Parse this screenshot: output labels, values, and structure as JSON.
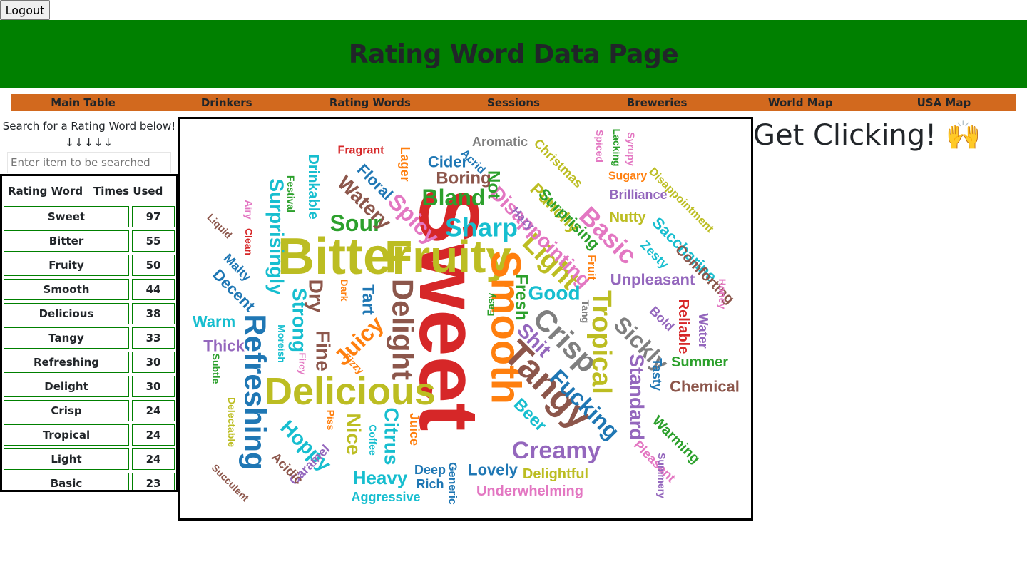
{
  "logout_label": "Logout",
  "page_title": "Rating Word Data Page",
  "nav": [
    "Main Table",
    "Drinkers",
    "Rating Words",
    "Sessions",
    "Breweries",
    "World Map",
    "USA Map"
  ],
  "search": {
    "title": "Search for a Rating Word below!",
    "arrows": "↓↓↓↓↓",
    "placeholder": "Enter item to be searched"
  },
  "table": {
    "headers": [
      "Rating Word",
      "Times Used"
    ],
    "rows": [
      [
        "Sweet",
        "97"
      ],
      [
        "Bitter",
        "55"
      ],
      [
        "Fruity",
        "50"
      ],
      [
        "Smooth",
        "44"
      ],
      [
        "Delicious",
        "38"
      ],
      [
        "Tangy",
        "33"
      ],
      [
        "Refreshing",
        "30"
      ],
      [
        "Delight",
        "30"
      ],
      [
        "Crisp",
        "24"
      ],
      [
        "Tropical",
        "24"
      ],
      [
        "Light",
        "24"
      ],
      [
        "Basic",
        "23"
      ]
    ]
  },
  "cloud_words": [
    {
      "t": "Sweet",
      "c": "#d62728",
      "s": 118,
      "r": 90
    },
    {
      "t": "Bitter",
      "c": "#bcbd22",
      "s": 72,
      "r": 0
    },
    {
      "t": "Fruity",
      "c": "#bcbd22",
      "s": 64,
      "r": 0
    },
    {
      "t": "Smooth",
      "c": "#ff7f0e",
      "s": 58,
      "r": 90
    },
    {
      "t": "Delicious",
      "c": "#bcbd22",
      "s": 54,
      "r": 0
    },
    {
      "t": "Tangy",
      "c": "#8c564b",
      "s": 52,
      "r": 45
    },
    {
      "t": "Refreshing",
      "c": "#1f77b4",
      "s": 42,
      "r": 90
    },
    {
      "t": "Delight",
      "c": "#8c564b",
      "s": 42,
      "r": 90
    },
    {
      "t": "Crisp",
      "c": "#7f7f7f",
      "s": 42,
      "r": 45
    },
    {
      "t": "Tropical",
      "c": "#bcbd22",
      "s": 38,
      "r": 90
    },
    {
      "t": "Light",
      "c": "#bcbd22",
      "s": 38,
      "r": 45
    },
    {
      "t": "Basic",
      "c": "#e377c2",
      "s": 36,
      "r": 45
    },
    {
      "t": "Sharp",
      "c": "#17becf",
      "s": 36,
      "r": 0
    },
    {
      "t": "Creamy",
      "c": "#9467bd",
      "s": 34,
      "r": 0
    },
    {
      "t": "Fucking",
      "c": "#1f77b4",
      "s": 32,
      "r": 45
    },
    {
      "t": "Bland",
      "c": "#2ca02c",
      "s": 32,
      "r": 0
    },
    {
      "t": "Juicy",
      "c": "#ff7f0e",
      "s": 32,
      "r": -45
    },
    {
      "t": "Sickly",
      "c": "#7f7f7f",
      "s": 32,
      "r": 45
    },
    {
      "t": "Sour",
      "c": "#2ca02c",
      "s": 32,
      "r": 0
    },
    {
      "t": "Spicy",
      "c": "#e377c2",
      "s": 32,
      "r": 45
    },
    {
      "t": "Disappointing",
      "c": "#e377c2",
      "s": 28,
      "r": 45
    },
    {
      "t": "Surprisingly",
      "c": "#17becf",
      "s": 28,
      "r": 90
    },
    {
      "t": "Strong",
      "c": "#17becf",
      "s": 28,
      "r": 90
    },
    {
      "t": "Fine",
      "c": "#8c564b",
      "s": 28,
      "r": 90
    },
    {
      "t": "Nice",
      "c": "#bcbd22",
      "s": 28,
      "r": 90
    },
    {
      "t": "Hoppy",
      "c": "#17becf",
      "s": 28,
      "r": 45
    },
    {
      "t": "Standard",
      "c": "#9467bd",
      "s": 28,
      "r": 90
    },
    {
      "t": "Shit",
      "c": "#9467bd",
      "s": 28,
      "r": 45
    },
    {
      "t": "Good",
      "c": "#17becf",
      "s": 28,
      "r": 0
    },
    {
      "t": "Citrus",
      "c": "#17becf",
      "s": 28,
      "r": 90
    },
    {
      "t": "Watery",
      "c": "#8c564b",
      "s": 28,
      "r": 45
    },
    {
      "t": "Dry",
      "c": "#8c564b",
      "s": 28,
      "r": 90
    },
    {
      "t": "Heavy",
      "c": "#17becf",
      "s": 26,
      "r": 0
    },
    {
      "t": "Fresh",
      "c": "#2ca02c",
      "s": 24,
      "r": 90
    },
    {
      "t": "Punchy",
      "c": "#bcbd22",
      "s": 24,
      "r": 45
    },
    {
      "t": "Boring",
      "c": "#8c564b",
      "s": 24,
      "r": 0
    },
    {
      "t": "Tart",
      "c": "#1f77b4",
      "s": 24,
      "r": 90
    },
    {
      "t": "Beer",
      "c": "#17becf",
      "s": 24,
      "r": 45
    },
    {
      "t": "Saccharine",
      "c": "#17becf",
      "s": 22,
      "r": 45
    },
    {
      "t": "Unpleasant",
      "c": "#9467bd",
      "s": 22,
      "r": 0
    },
    {
      "t": "Lovely",
      "c": "#1f77b4",
      "s": 22,
      "r": 0
    },
    {
      "t": "Chemical",
      "c": "#8c564b",
      "s": 22,
      "r": 0
    },
    {
      "t": "Surprising",
      "c": "#2ca02c",
      "s": 22,
      "r": 45
    },
    {
      "t": "Cider",
      "c": "#1f77b4",
      "s": 22,
      "r": 0
    },
    {
      "t": "Decent",
      "c": "#1f77b4",
      "s": 22,
      "r": 45
    },
    {
      "t": "Warm",
      "c": "#17becf",
      "s": 22,
      "r": 0
    },
    {
      "t": "Thick",
      "c": "#9467bd",
      "s": 22,
      "r": 0
    },
    {
      "t": "Underwhelming",
      "c": "#e377c2",
      "s": 20,
      "r": 0
    },
    {
      "t": "Delightful",
      "c": "#bcbd22",
      "s": 20,
      "r": 0
    },
    {
      "t": "Warming",
      "c": "#2ca02c",
      "s": 20,
      "r": 45
    },
    {
      "t": "Summer",
      "c": "#2ca02c",
      "s": 20,
      "r": 0
    },
    {
      "t": "Nutty",
      "c": "#bcbd22",
      "s": 20,
      "r": 0
    },
    {
      "t": "Reliable",
      "c": "#d62728",
      "s": 20,
      "r": 90
    },
    {
      "t": "Comforting",
      "c": "#8c564b",
      "s": 20,
      "r": 45
    },
    {
      "t": "Floral",
      "c": "#1f77b4",
      "s": 22,
      "r": 45
    },
    {
      "t": "Drinkable",
      "c": "#17becf",
      "s": 20,
      "r": 90
    },
    {
      "t": "Christmas",
      "c": "#bcbd22",
      "s": 18,
      "r": 45
    },
    {
      "t": "Brilliance",
      "c": "#9467bd",
      "s": 18,
      "r": 0
    },
    {
      "t": "Aggressive",
      "c": "#17becf",
      "s": 18,
      "r": 0
    },
    {
      "t": "Aromatic",
      "c": "#7f7f7f",
      "s": 18,
      "r": 0
    },
    {
      "t": "Caramel",
      "c": "#9467bd",
      "s": 18,
      "r": -45
    },
    {
      "t": "Pleasant",
      "c": "#e377c2",
      "s": 18,
      "r": 45
    },
    {
      "t": "Acidic",
      "c": "#8c564b",
      "s": 18,
      "r": 45
    },
    {
      "t": "Zesty",
      "c": "#17becf",
      "s": 18,
      "r": 45
    },
    {
      "t": "Bold",
      "c": "#9467bd",
      "s": 18,
      "r": 45
    },
    {
      "t": "Malty",
      "c": "#1f77b4",
      "s": 18,
      "r": 45
    },
    {
      "t": "Deep",
      "c": "#1f77b4",
      "s": 18,
      "r": 0
    },
    {
      "t": "Rich",
      "c": "#1f77b4",
      "s": 18,
      "r": 0
    },
    {
      "t": "Water",
      "c": "#9467bd",
      "s": 18,
      "r": 90
    },
    {
      "t": "Tasty",
      "c": "#1f77b4",
      "s": 18,
      "r": 90
    },
    {
      "t": "Disappointment",
      "c": "#bcbd22",
      "s": 16,
      "r": 45
    },
    {
      "t": "Sugary",
      "c": "#ff7f0e",
      "s": 16,
      "r": 0
    },
    {
      "t": "Fragrant",
      "c": "#d62728",
      "s": 16,
      "r": 0
    },
    {
      "t": "Lager",
      "c": "#ff7f0e",
      "s": 18,
      "r": 90
    },
    {
      "t": "Acrid",
      "c": "#1f77b4",
      "s": 16,
      "r": 45
    },
    {
      "t": "Not",
      "c": "#2ca02c",
      "s": 24,
      "r": 90
    },
    {
      "t": "Hazy",
      "c": "#9467bd",
      "s": 16,
      "r": 45
    },
    {
      "t": "Fruit",
      "c": "#ff7f0e",
      "s": 16,
      "r": 90
    },
    {
      "t": "Generic",
      "c": "#1f77b4",
      "s": 16,
      "r": 90
    },
    {
      "t": "Juice",
      "c": "#ff7f0e",
      "s": 18,
      "r": 90
    },
    {
      "t": "Coffee",
      "c": "#17becf",
      "s": 14,
      "r": 90
    },
    {
      "t": "Piss",
      "c": "#ff7f0e",
      "s": 14,
      "r": 90
    },
    {
      "t": "Moreish",
      "c": "#17becf",
      "s": 14,
      "r": 90
    },
    {
      "t": "Fizzy",
      "c": "#ff7f0e",
      "s": 14,
      "r": 45
    },
    {
      "t": "Firey",
      "c": "#e377c2",
      "s": 13,
      "r": 90
    },
    {
      "t": "Dark",
      "c": "#ff7f0e",
      "s": 14,
      "r": 90
    },
    {
      "t": "Easy",
      "c": "#2ca02c",
      "s": 14,
      "r": -90
    },
    {
      "t": "Tang",
      "c": "#7f7f7f",
      "s": 14,
      "r": 90
    },
    {
      "t": "Honey",
      "c": "#e377c2",
      "s": 14,
      "r": 90
    },
    {
      "t": "Summery",
      "c": "#9467bd",
      "s": 14,
      "r": 90
    },
    {
      "t": "Succulent",
      "c": "#8c564b",
      "s": 14,
      "r": 45
    },
    {
      "t": "Delectable",
      "c": "#bcbd22",
      "s": 14,
      "r": 90
    },
    {
      "t": "Subtle",
      "c": "#2ca02c",
      "s": 14,
      "r": 90
    },
    {
      "t": "Festival",
      "c": "#2ca02c",
      "s": 14,
      "r": 90
    },
    {
      "t": "Liquid",
      "c": "#8c564b",
      "s": 14,
      "r": 45
    },
    {
      "t": "Airy",
      "c": "#e377c2",
      "s": 14,
      "r": 90
    },
    {
      "t": "Clean",
      "c": "#d62728",
      "s": 14,
      "r": 90
    },
    {
      "t": "Spiced",
      "c": "#e377c2",
      "s": 14,
      "r": 90
    },
    {
      "t": "Lacking",
      "c": "#2ca02c",
      "s": 14,
      "r": 90
    },
    {
      "t": "Syrupy",
      "c": "#e377c2",
      "s": 14,
      "r": 90
    }
  ],
  "get_clicking": "Get Clicking! 🙌"
}
